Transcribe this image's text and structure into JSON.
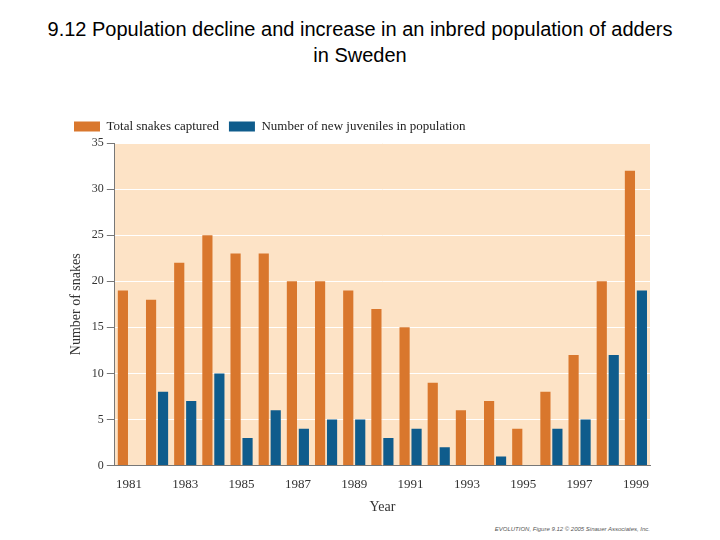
{
  "chart_data": {
    "type": "bar",
    "title": "9.12  Population decline and increase in an inbred population of adders in Sweden",
    "x_label": "Year",
    "y_label": "Number of snakes",
    "categories": [
      "1981",
      null,
      "1983",
      null,
      "1985",
      null,
      "1987",
      null,
      "1989",
      null,
      "1991",
      null,
      "1993",
      null,
      "1995",
      null,
      "1997",
      null,
      "1999"
    ],
    "series": [
      {
        "name": "Total snakes captured",
        "color": "#d9772d",
        "values": [
          19,
          18,
          22,
          25,
          23,
          23,
          20,
          20,
          19,
          17,
          15,
          9,
          6,
          7,
          4,
          8,
          12,
          20,
          32
        ]
      },
      {
        "name": "Number of new juveniles in population",
        "color": "#0f5c8c",
        "values": [
          null,
          8,
          7,
          10,
          3,
          6,
          4,
          5,
          5,
          3,
          4,
          2,
          0,
          1,
          0,
          4,
          5,
          12,
          19
        ]
      }
    ],
    "ylim": [
      0,
      35
    ],
    "yticks": [
      0,
      5,
      10,
      15,
      20,
      25,
      30,
      35
    ],
    "grid": true,
    "legend": "upper left",
    "annotations": [
      "EVOLUTION, Figure 9.12 © 2005 Sinauer Associates, Inc."
    ]
  }
}
